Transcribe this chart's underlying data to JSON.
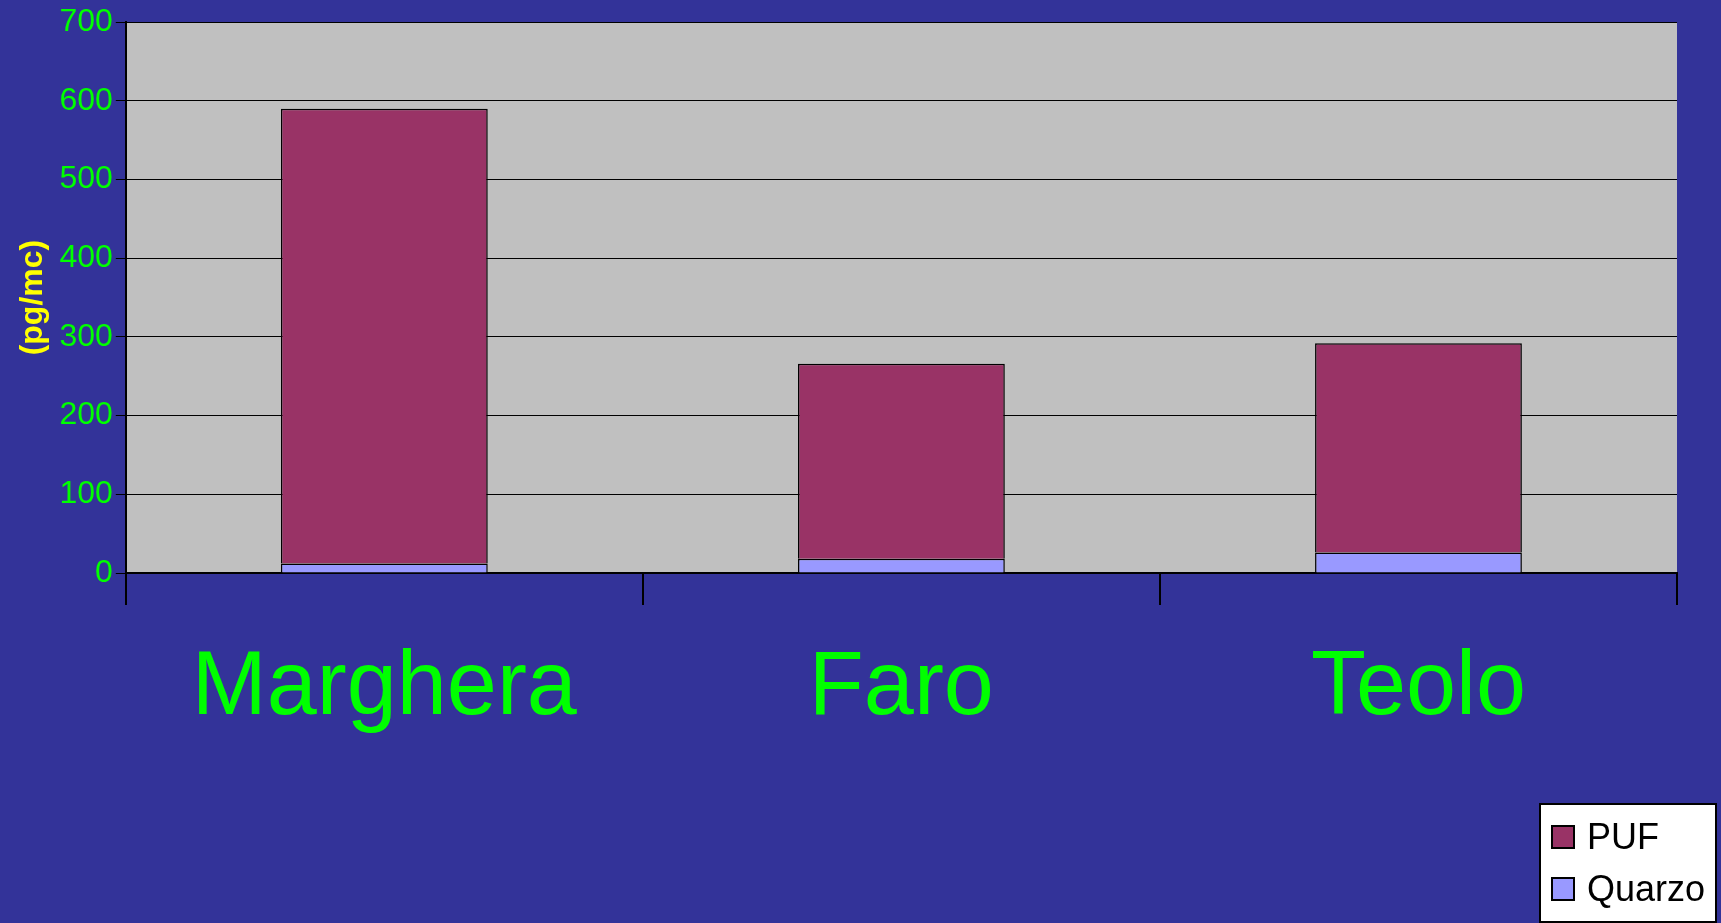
{
  "chart_data": {
    "type": "bar",
    "ylabel": "(pg/mc)",
    "categories": [
      "Marghera",
      "Faro",
      "Teolo"
    ],
    "stacked": true,
    "series": [
      {
        "name": "Quarzo",
        "color": "#9999ff",
        "values": [
          12,
          18,
          26
        ]
      },
      {
        "name": "PUF",
        "color": "#993366",
        "values": [
          578,
          248,
          266
        ]
      }
    ],
    "ylim": [
      0,
      700
    ],
    "yticks": [
      0,
      100,
      200,
      300,
      400,
      500,
      600,
      700
    ],
    "grid": "y",
    "legend": "bottom right"
  }
}
